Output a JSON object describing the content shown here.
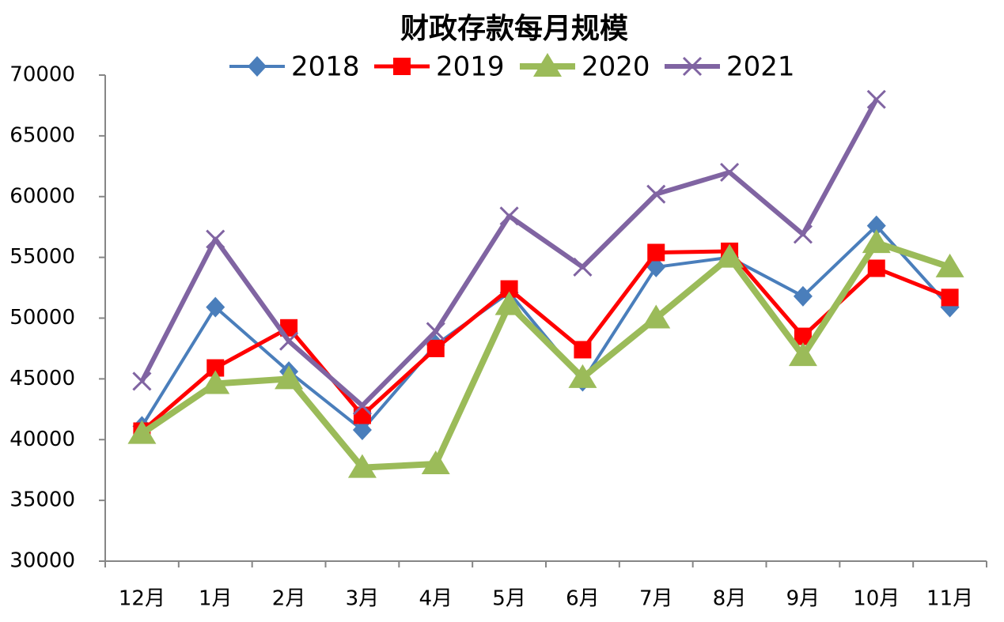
{
  "chart_data": {
    "type": "line",
    "title": "财政存款每月规模",
    "categories": [
      "12月",
      "1月",
      "2月",
      "3月",
      "4月",
      "5月",
      "6月",
      "7月",
      "8月",
      "9月",
      "10月",
      "11月"
    ],
    "series": [
      {
        "name": "2018",
        "color": "#4a7ebb",
        "marker": "diamond",
        "values": [
          41100,
          50900,
          45600,
          40800,
          47800,
          52100,
          44800,
          54200,
          55000,
          51800,
          57600,
          50900
        ]
      },
      {
        "name": "2019",
        "color": "#ff0000",
        "marker": "square",
        "values": [
          40700,
          45900,
          49200,
          42000,
          47500,
          52400,
          47400,
          55400,
          55500,
          48500,
          54100,
          51700
        ]
      },
      {
        "name": "2020",
        "color": "#9bbb59",
        "marker": "triangle",
        "values": [
          40500,
          44600,
          45000,
          37700,
          38000,
          51100,
          45100,
          50000,
          55000,
          46900,
          56200,
          54200
        ]
      },
      {
        "name": "2021",
        "color": "#8064a2",
        "marker": "x",
        "values": [
          44800,
          56500,
          48100,
          42800,
          48900,
          58400,
          54200,
          60200,
          62000,
          56900,
          68000,
          null
        ]
      }
    ],
    "ylim": [
      30000,
      70000
    ],
    "yticks": [
      30000,
      35000,
      40000,
      45000,
      50000,
      55000,
      60000,
      65000,
      70000
    ],
    "grid": false
  }
}
